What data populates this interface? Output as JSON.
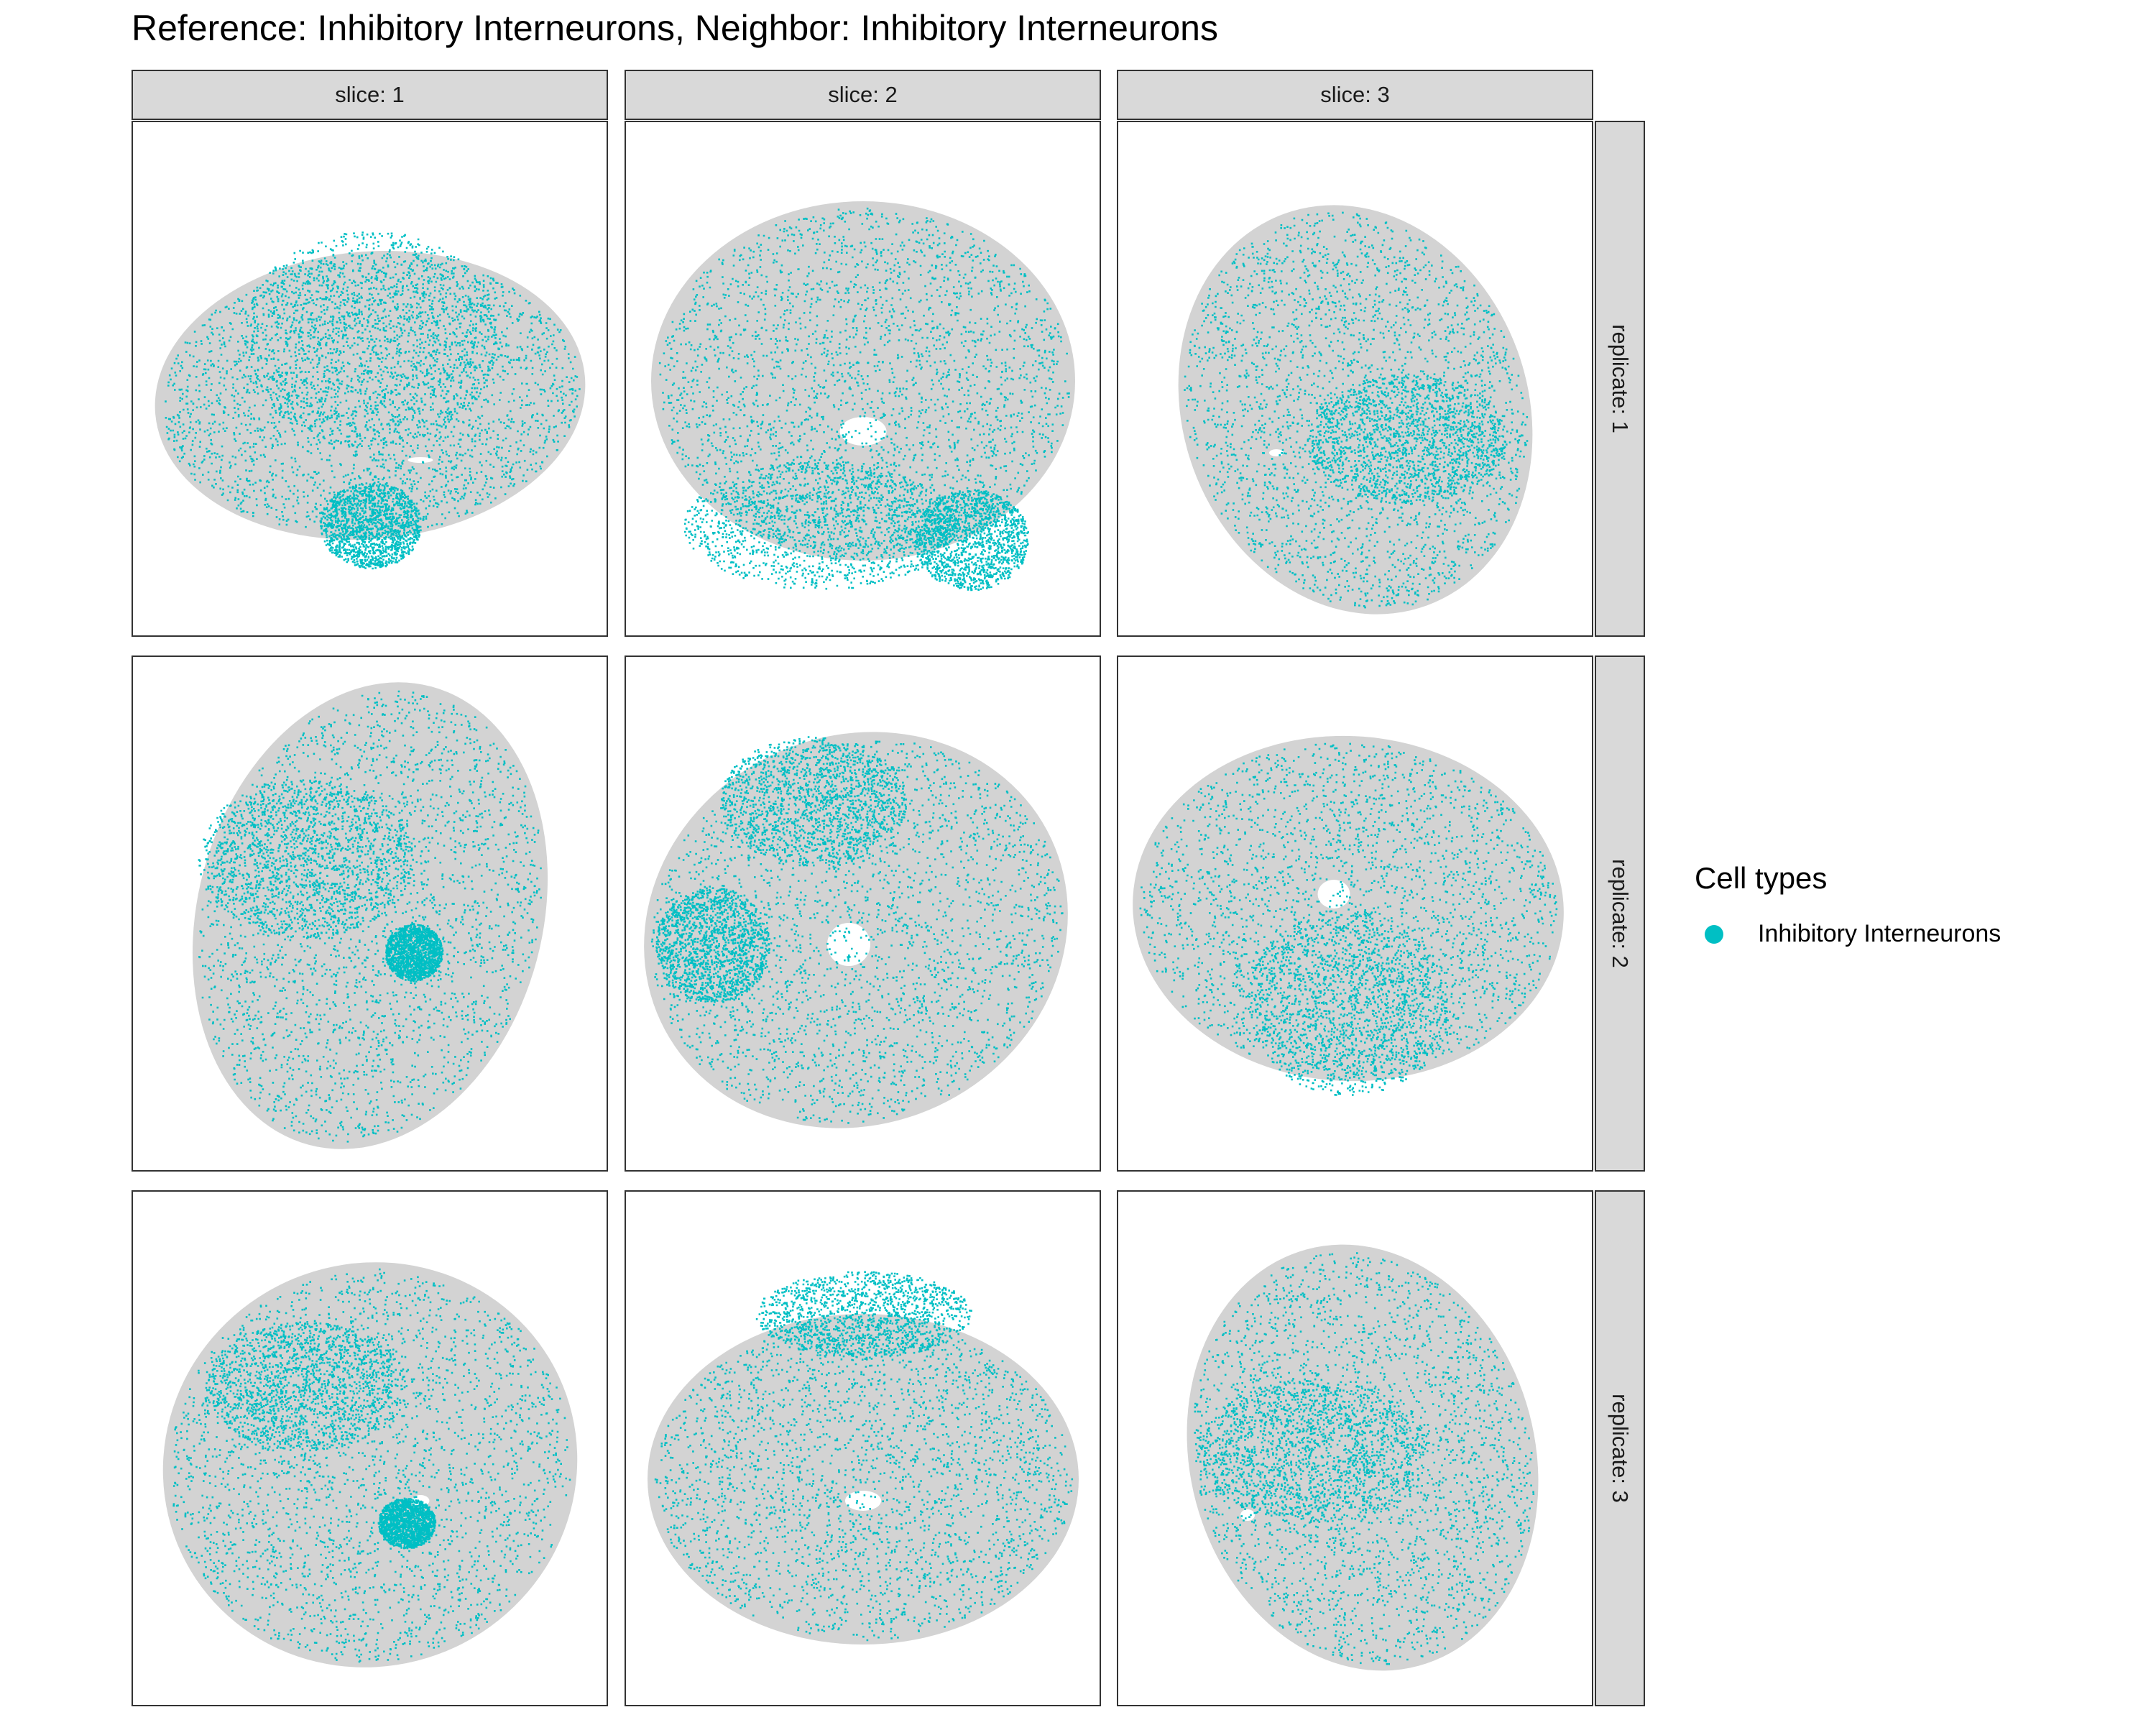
{
  "chart_data": {
    "type": "scatter",
    "title": "Reference: Inhibitory Interneurons, Neighbor: Inhibitory Interneurons",
    "facet_columns": [
      "slice: 1",
      "slice: 2",
      "slice: 3"
    ],
    "facet_rows": [
      "replicate: 1",
      "replicate: 2",
      "replicate: 3"
    ],
    "legend": {
      "title": "Cell types",
      "position": "right",
      "entries": [
        {
          "name": "Inhibitory Interneurons",
          "color": "#00BFC4"
        }
      ]
    },
    "background_cell_color": "#d3d3d3",
    "highlight_color": "#00BFC4",
    "axes_visible": false,
    "grid": false
  }
}
